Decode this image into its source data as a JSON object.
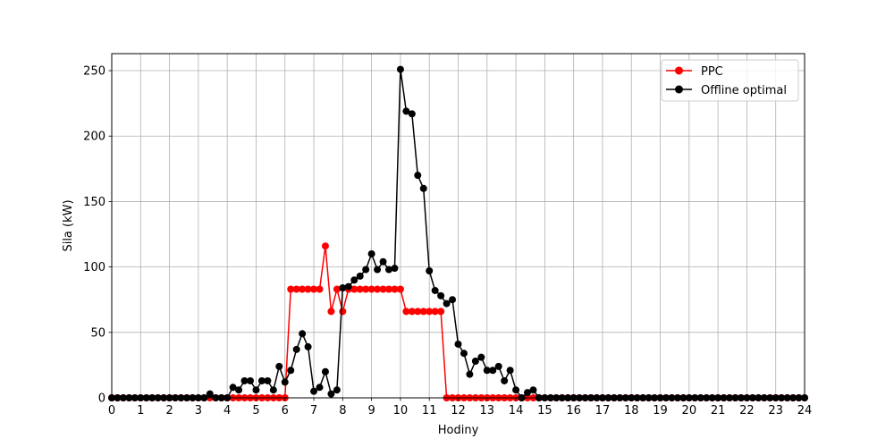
{
  "chart_data": {
    "type": "line",
    "xlabel": "Hodiny",
    "ylabel": "Sila (kW)",
    "xlim": [
      0,
      24
    ],
    "ylim": [
      0,
      263
    ],
    "xticks": [
      0,
      1,
      2,
      3,
      4,
      5,
      6,
      7,
      8,
      9,
      10,
      11,
      12,
      13,
      14,
      15,
      16,
      17,
      18,
      19,
      20,
      21,
      22,
      23,
      24
    ],
    "yticks": [
      0,
      50,
      100,
      150,
      200,
      250
    ],
    "grid": true,
    "legend_position": "top-right",
    "x": [
      0,
      0.2,
      0.4,
      0.6,
      0.8,
      1,
      1.2,
      1.4,
      1.6,
      1.8,
      2,
      2.2,
      2.4,
      2.6,
      2.8,
      3,
      3.2,
      3.4,
      3.6,
      3.8,
      4,
      4.2,
      4.4,
      4.6,
      4.8,
      5,
      5.2,
      5.4,
      5.6,
      5.8,
      6,
      6.2,
      6.4,
      6.6,
      6.8,
      7,
      7.2,
      7.4,
      7.6,
      7.8,
      8,
      8.2,
      8.4,
      8.6,
      8.8,
      9,
      9.2,
      9.4,
      9.6,
      9.8,
      10,
      10.2,
      10.4,
      10.6,
      10.8,
      11,
      11.2,
      11.4,
      11.6,
      11.8,
      12,
      12.2,
      12.4,
      12.6,
      12.8,
      13,
      13.2,
      13.4,
      13.6,
      13.8,
      14,
      14.2,
      14.4,
      14.6,
      14.8,
      15,
      15.2,
      15.4,
      15.6,
      15.8,
      16,
      16.2,
      16.4,
      16.6,
      16.8,
      17,
      17.2,
      17.4,
      17.6,
      17.8,
      18,
      18.2,
      18.4,
      18.6,
      18.8,
      19,
      19.2,
      19.4,
      19.6,
      19.8,
      20,
      20.2,
      20.4,
      20.6,
      20.8,
      21,
      21.2,
      21.4,
      21.6,
      21.8,
      22,
      22.2,
      22.4,
      22.6,
      22.8,
      23,
      23.2,
      23.4,
      23.6,
      23.8,
      24
    ],
    "series": [
      {
        "name": "PPC",
        "color": "#ff0000",
        "values": [
          0,
          0,
          0,
          0,
          0,
          0,
          0,
          0,
          0,
          0,
          0,
          0,
          0,
          0,
          0,
          0,
          0,
          0,
          0,
          0,
          0,
          0,
          0,
          0,
          0,
          0,
          0,
          0,
          0,
          0,
          0,
          83,
          83,
          83,
          83,
          83,
          83,
          116,
          66,
          83,
          66,
          83,
          83,
          83,
          83,
          83,
          83,
          83,
          83,
          83,
          83,
          66,
          66,
          66,
          66,
          66,
          66,
          66,
          0,
          0,
          0,
          0,
          0,
          0,
          0,
          0,
          0,
          0,
          0,
          0,
          0,
          0,
          0,
          0,
          0,
          0,
          0,
          0,
          0,
          0,
          0,
          0,
          0,
          0,
          0,
          0,
          0,
          0,
          0,
          0,
          0,
          0,
          0,
          0,
          0,
          0,
          0,
          0,
          0,
          0,
          0,
          0,
          0,
          0,
          0,
          0,
          0,
          0,
          0,
          0,
          0,
          0,
          0,
          0,
          0,
          0,
          0,
          0,
          0,
          0,
          0
        ]
      },
      {
        "name": "Offline optimal",
        "color": "#000000",
        "values": [
          0,
          0,
          0,
          0,
          0,
          0,
          0,
          0,
          0,
          0,
          0,
          0,
          0,
          0,
          0,
          0,
          0,
          3,
          0,
          0,
          0,
          8,
          6,
          13,
          13,
          6,
          13,
          13,
          6,
          24,
          12,
          21,
          37,
          49,
          39,
          5,
          8,
          20,
          3,
          6,
          84,
          85,
          90,
          93,
          98,
          110,
          98,
          104,
          98,
          99,
          251,
          219,
          217,
          170,
          160,
          97,
          82,
          78,
          72,
          75,
          41,
          34,
          18,
          28,
          31,
          21,
          21,
          24,
          13,
          21,
          6,
          0,
          4,
          6,
          0,
          0,
          0,
          0,
          0,
          0,
          0,
          0,
          0,
          0,
          0,
          0,
          0,
          0,
          0,
          0,
          0,
          0,
          0,
          0,
          0,
          0,
          0,
          0,
          0,
          0,
          0,
          0,
          0,
          0,
          0,
          0,
          0,
          0,
          0,
          0,
          0,
          0,
          0,
          0,
          0,
          0,
          0,
          0,
          0,
          0,
          0
        ]
      }
    ]
  }
}
